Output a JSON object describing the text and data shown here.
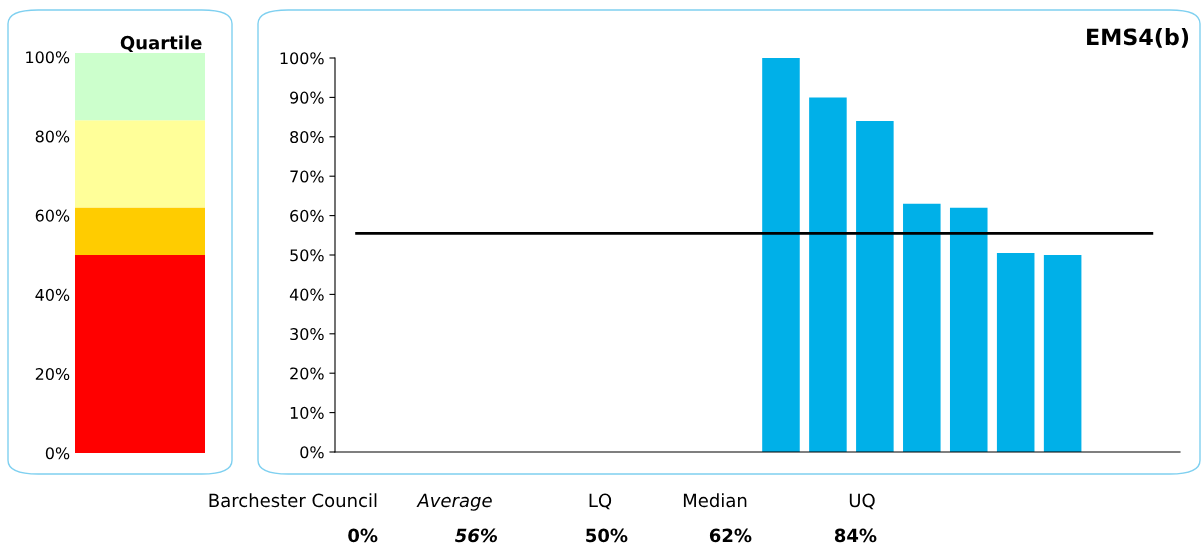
{
  "chart_data": [
    {
      "type": "bar",
      "title": "Quartile",
      "stacked": true,
      "categories": [
        null
      ],
      "series": [
        {
          "color": "#ff0000",
          "values": [
            50
          ]
        },
        {
          "color": "#ffcc00",
          "values": [
            12
          ]
        },
        {
          "color": "#ffff99",
          "values": [
            22
          ]
        },
        {
          "color": "#ccffcc",
          "values": [
            17
          ]
        }
      ],
      "ylim": [
        0,
        101
      ],
      "yticks": [
        {
          "value": 0,
          "label": "0%"
        },
        {
          "value": 20,
          "label": "20%"
        },
        {
          "value": 40,
          "label": "40%"
        },
        {
          "value": 60,
          "label": "60%"
        },
        {
          "value": 80,
          "label": "80%"
        },
        {
          "value": 100,
          "label": "100%"
        }
      ],
      "tick_labels": "y"
    },
    {
      "type": "bar",
      "title": "EMS4(b)",
      "categories": [
        null,
        null,
        null,
        null,
        null,
        null,
        null,
        null,
        null,
        null,
        null,
        null,
        null,
        null,
        null,
        null,
        null,
        null
      ],
      "series": [
        {
          "color": "#00b0e8",
          "values": [
            null,
            null,
            null,
            null,
            null,
            null,
            null,
            null,
            null,
            100,
            90,
            84,
            63,
            62,
            50.5,
            50,
            null,
            null
          ]
        }
      ],
      "ylim": [
        0,
        100
      ],
      "yticks": [
        {
          "value": 0,
          "label": "0%"
        },
        {
          "value": 10,
          "label": "10%"
        },
        {
          "value": 20,
          "label": "20%"
        },
        {
          "value": 30,
          "label": "30%"
        },
        {
          "value": 40,
          "label": "40%"
        },
        {
          "value": 50,
          "label": "50%"
        },
        {
          "value": 60,
          "label": "60%"
        },
        {
          "value": 70,
          "label": "70%"
        },
        {
          "value": 80,
          "label": "80%"
        },
        {
          "value": 90,
          "label": "90%"
        },
        {
          "value": 100,
          "label": "100%"
        }
      ],
      "ref_lines": [
        {
          "axis": "y",
          "value": 55.5,
          "color": "#000000"
        }
      ],
      "tick_labels": "y",
      "annotations": [
        "Barchester Council",
        "Average",
        "LQ",
        "Median",
        "UQ",
        "0%",
        "56%",
        "50%",
        "62%",
        "84%"
      ]
    }
  ]
}
